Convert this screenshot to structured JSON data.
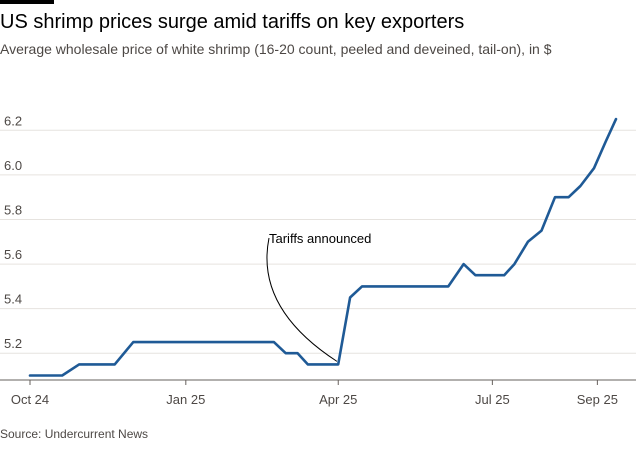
{
  "header": {
    "title": "US shrimp prices surge amid tariffs on key exporters",
    "subtitle": "Average wholesale price of white shrimp (16-20 count, peeled and deveined, tail-on), in $"
  },
  "footer": {
    "source": "Source: Undercurrent News"
  },
  "chart_data": {
    "type": "line",
    "title": "US shrimp prices surge amid tariffs on key exporters",
    "ylabel": "$",
    "xlabel": "",
    "ylim": [
      5.08,
      6.3
    ],
    "yticks": [
      5.2,
      5.4,
      5.6,
      5.8,
      6.0,
      6.2
    ],
    "ytick_labels": [
      "5.2",
      "5.4",
      "5.6",
      "5.8",
      "6.0",
      "6.2"
    ],
    "xlim": [
      "2024-10-01",
      "2025-09-12"
    ],
    "xticks": [
      "2024-10-01",
      "2025-01-01",
      "2025-04-01",
      "2025-07-01",
      "2025-09-01"
    ],
    "xtick_labels": [
      "Oct 24",
      "Jan 25",
      "Apr 25",
      "Jul 25",
      "Sep 25"
    ],
    "grid": true,
    "line_color": "#1f5a96",
    "series": [
      {
        "name": "White shrimp 16-20 count price",
        "points": [
          [
            "2024-10-01",
            5.1
          ],
          [
            "2024-10-20",
            5.1
          ],
          [
            "2024-10-30",
            5.15
          ],
          [
            "2024-11-20",
            5.15
          ],
          [
            "2024-12-01",
            5.25
          ],
          [
            "2025-02-22",
            5.25
          ],
          [
            "2025-03-01",
            5.2
          ],
          [
            "2025-03-08",
            5.2
          ],
          [
            "2025-03-14",
            5.15
          ],
          [
            "2025-04-01",
            5.15
          ],
          [
            "2025-04-08",
            5.45
          ],
          [
            "2025-04-15",
            5.5
          ],
          [
            "2025-06-05",
            5.5
          ],
          [
            "2025-06-14",
            5.6
          ],
          [
            "2025-06-21",
            5.55
          ],
          [
            "2025-07-08",
            5.55
          ],
          [
            "2025-07-14",
            5.6
          ],
          [
            "2025-07-22",
            5.7
          ],
          [
            "2025-07-30",
            5.75
          ],
          [
            "2025-08-07",
            5.9
          ],
          [
            "2025-08-15",
            5.9
          ],
          [
            "2025-08-22",
            5.95
          ],
          [
            "2025-08-30",
            6.03
          ],
          [
            "2025-09-06",
            6.15
          ],
          [
            "2025-09-12",
            6.25
          ]
        ]
      }
    ],
    "annotations": [
      {
        "text": "Tariffs announced",
        "date": "2025-04-02",
        "value": 5.15
      }
    ]
  }
}
